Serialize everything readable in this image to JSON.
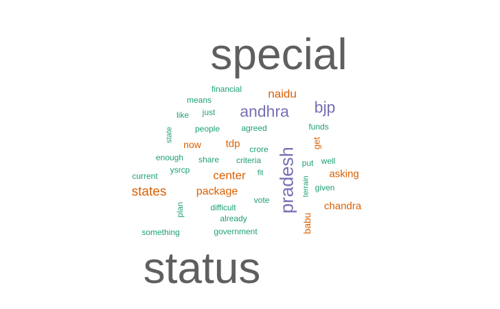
{
  "palette": {
    "gray": "#5f5f5f",
    "purple": "#7570b3",
    "orange": "#d95f02",
    "green": "#1b9e77"
  },
  "words": [
    {
      "text": "special",
      "color": "gray",
      "size": 1.0,
      "vertical": false
    },
    {
      "text": "status",
      "color": "gray",
      "size": 1.0,
      "vertical": false
    },
    {
      "text": "pradesh",
      "color": "purple",
      "size": 0.42,
      "vertical": true
    },
    {
      "text": "andhra",
      "color": "purple",
      "size": 0.36,
      "vertical": false
    },
    {
      "text": "bjp",
      "color": "purple",
      "size": 0.36,
      "vertical": false
    },
    {
      "text": "states",
      "color": "orange",
      "size": 0.3,
      "vertical": false
    },
    {
      "text": "naidu",
      "color": "orange",
      "size": 0.27,
      "vertical": false
    },
    {
      "text": "center",
      "color": "orange",
      "size": 0.27,
      "vertical": false
    },
    {
      "text": "package",
      "color": "orange",
      "size": 0.25,
      "vertical": false
    },
    {
      "text": "asking",
      "color": "orange",
      "size": 0.23,
      "vertical": false
    },
    {
      "text": "chandra",
      "color": "orange",
      "size": 0.23,
      "vertical": false
    },
    {
      "text": "tdp",
      "color": "orange",
      "size": 0.23,
      "vertical": false
    },
    {
      "text": "now",
      "color": "orange",
      "size": 0.22,
      "vertical": false
    },
    {
      "text": "babu",
      "color": "orange",
      "size": 0.22,
      "vertical": true
    },
    {
      "text": "get",
      "color": "orange",
      "size": 0.2,
      "vertical": true
    },
    {
      "text": "financial",
      "color": "green",
      "size": 0.19,
      "vertical": false
    },
    {
      "text": "means",
      "color": "green",
      "size": 0.19,
      "vertical": false
    },
    {
      "text": "just",
      "color": "green",
      "size": 0.19,
      "vertical": false
    },
    {
      "text": "like",
      "color": "green",
      "size": 0.19,
      "vertical": false
    },
    {
      "text": "people",
      "color": "green",
      "size": 0.19,
      "vertical": false
    },
    {
      "text": "agreed",
      "color": "green",
      "size": 0.19,
      "vertical": false
    },
    {
      "text": "funds",
      "color": "green",
      "size": 0.19,
      "vertical": false
    },
    {
      "text": "state",
      "color": "green",
      "size": 0.17,
      "vertical": true
    },
    {
      "text": "crore",
      "color": "green",
      "size": 0.19,
      "vertical": false
    },
    {
      "text": "enough",
      "color": "green",
      "size": 0.19,
      "vertical": false
    },
    {
      "text": "share",
      "color": "green",
      "size": 0.19,
      "vertical": false
    },
    {
      "text": "criteria",
      "color": "green",
      "size": 0.19,
      "vertical": false
    },
    {
      "text": "put",
      "color": "green",
      "size": 0.19,
      "vertical": false
    },
    {
      "text": "well",
      "color": "green",
      "size": 0.19,
      "vertical": false
    },
    {
      "text": "current",
      "color": "green",
      "size": 0.19,
      "vertical": false
    },
    {
      "text": "ysrcp",
      "color": "green",
      "size": 0.19,
      "vertical": false
    },
    {
      "text": "fit",
      "color": "green",
      "size": 0.17,
      "vertical": false
    },
    {
      "text": "terrain",
      "color": "green",
      "size": 0.17,
      "vertical": true
    },
    {
      "text": "given",
      "color": "green",
      "size": 0.19,
      "vertical": false
    },
    {
      "text": "plan",
      "color": "green",
      "size": 0.18,
      "vertical": true
    },
    {
      "text": "difficult",
      "color": "green",
      "size": 0.19,
      "vertical": false
    },
    {
      "text": "vote",
      "color": "green",
      "size": 0.19,
      "vertical": false
    },
    {
      "text": "already",
      "color": "green",
      "size": 0.19,
      "vertical": false
    },
    {
      "text": "something",
      "color": "green",
      "size": 0.19,
      "vertical": false
    },
    {
      "text": "government",
      "color": "green",
      "size": 0.19,
      "vertical": false
    }
  ]
}
